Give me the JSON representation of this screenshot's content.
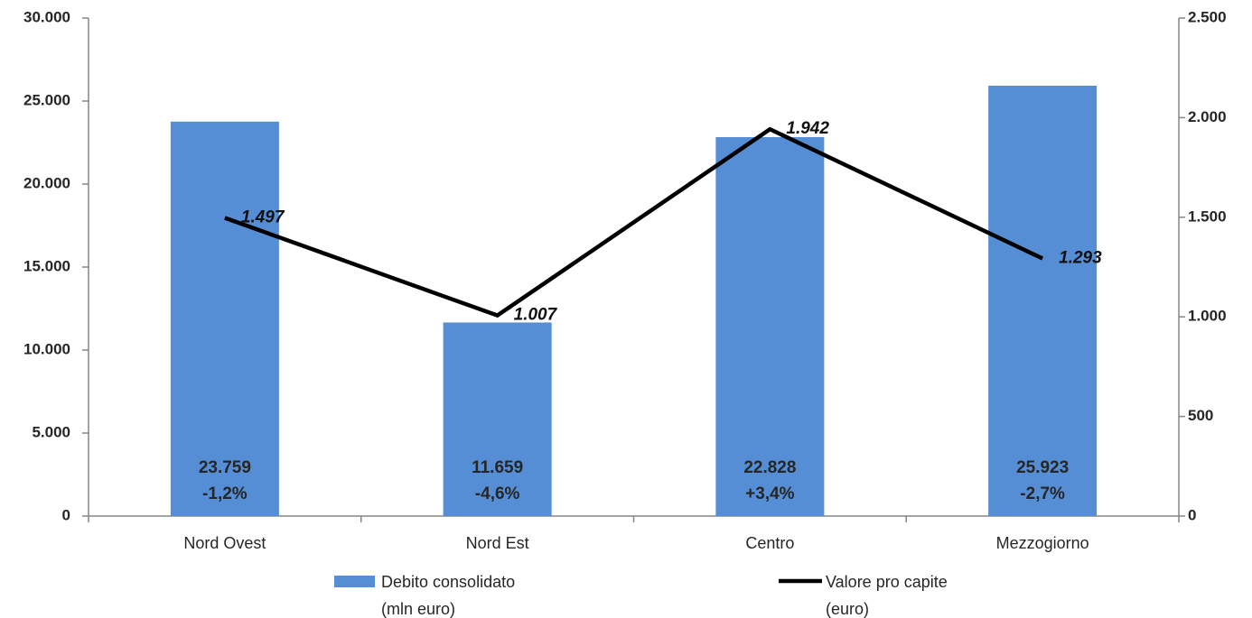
{
  "chart_data": {
    "type": "bar_line",
    "categories": [
      "Nord Ovest",
      "Nord Est",
      "Centro",
      "Mezzogiorno"
    ],
    "series": [
      {
        "name": "Debito consolidato\n(mln euro)",
        "type": "bar",
        "color": "#558ed5",
        "values": [
          23759,
          11659,
          22828,
          25923
        ],
        "value_labels": [
          "23.759",
          "11.659",
          "22.828",
          "25.923"
        ],
        "change_labels": [
          "-1,2%",
          "-4,6%",
          "+3,4%",
          "-2,7%"
        ]
      },
      {
        "name": "Valore pro capite\n(euro)",
        "type": "line",
        "axis": "y2",
        "color": "#000000",
        "values": [
          1497,
          1007,
          1942,
          1293
        ],
        "value_labels": [
          "1.497",
          "1.007",
          "1.942",
          "1.293"
        ]
      }
    ],
    "ylim": [
      0,
      30000
    ],
    "yticks": [
      0,
      {
        "value": 5000,
        "label": "5.000"
      },
      {
        "value": 10000,
        "label": "10.000"
      },
      {
        "value": 15000,
        "label": "15.000"
      },
      {
        "value": 20000,
        "label": "20.000"
      },
      {
        "value": 25000,
        "label": "25.000"
      },
      {
        "value": 30000,
        "label": "30.000"
      }
    ],
    "y2lim": [
      0,
      2500
    ],
    "y2ticks": [
      0,
      500,
      {
        "value": 1000,
        "label": "1.000"
      },
      {
        "value": 1500,
        "label": "1.500"
      },
      {
        "value": 2000,
        "label": "2.000"
      },
      {
        "value": 2500,
        "label": "2.500"
      }
    ],
    "grid": false,
    "legend": "bottom"
  }
}
